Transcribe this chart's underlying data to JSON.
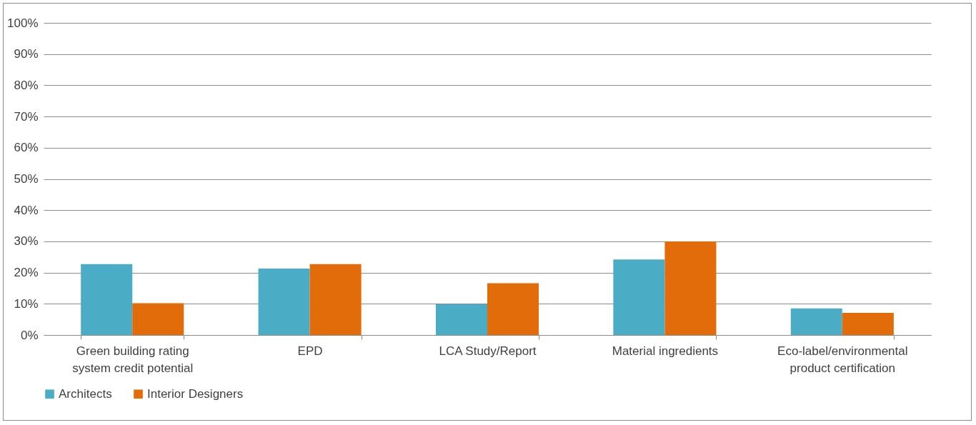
{
  "chart_data": {
    "type": "bar",
    "categories": [
      "Green building rating system credit potential",
      "EPD",
      "LCA Study/Report",
      "Material ingredients",
      "Eco-label/environmental product certification"
    ],
    "series": [
      {
        "name": "Architects",
        "color": "#4bacc6",
        "values": [
          22.7,
          21.3,
          9.9,
          24.2,
          8.5
        ]
      },
      {
        "name": "Interior Designers",
        "color": "#e36c0a",
        "values": [
          10.2,
          22.7,
          16.6,
          30,
          7.1
        ]
      }
    ],
    "ylim": [
      0,
      100
    ],
    "yticks": [
      {
        "value": 0,
        "label": "0%"
      },
      {
        "value": 10,
        "label": "10%"
      },
      {
        "value": 20,
        "label": "20%"
      },
      {
        "value": 30,
        "label": "30%"
      },
      {
        "value": 40,
        "label": "40%"
      },
      {
        "value": 50,
        "label": "50%"
      },
      {
        "value": 60,
        "label": "60%"
      },
      {
        "value": 70,
        "label": "70%"
      },
      {
        "value": 80,
        "label": "80%"
      },
      {
        "value": 90,
        "label": "90%"
      },
      {
        "value": 100,
        "label": "100%"
      }
    ],
    "grid": "y",
    "legend": "bottom"
  }
}
